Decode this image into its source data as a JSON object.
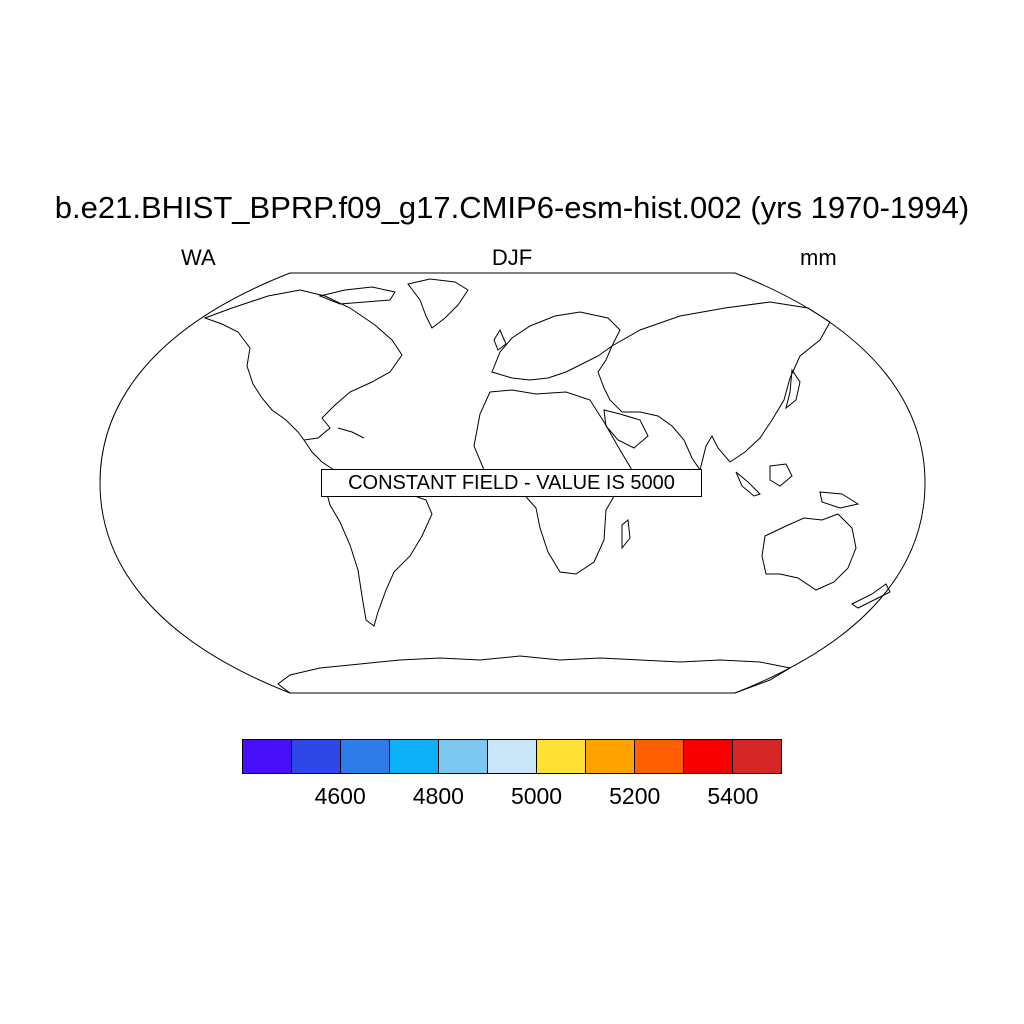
{
  "title": "b.e21.BHIST_BPRP.f09_g17.CMIP6-esm-hist.002 (yrs 1970-1994)",
  "subtitles": {
    "left": "WA",
    "center": "DJF",
    "right": "mm"
  },
  "notice": "CONSTANT FIELD - VALUE IS 5000",
  "map": {
    "projection": "Robinson",
    "coastlines": true,
    "constant_value": 5000
  },
  "colorbar": {
    "colors": [
      "#4710F8",
      "#2E48E8",
      "#2E7BEA",
      "#0BB0F9",
      "#7DC8F0",
      "#C8E6F8",
      "#FFE135",
      "#FFA300",
      "#FF5F00",
      "#F90000",
      "#D72626"
    ],
    "ticks": [
      {
        "label": "4600",
        "boundary": 2
      },
      {
        "label": "4800",
        "boundary": 4
      },
      {
        "label": "5000",
        "boundary": 6
      },
      {
        "label": "5200",
        "boundary": 8
      },
      {
        "label": "5400",
        "boundary": 10
      }
    ]
  }
}
